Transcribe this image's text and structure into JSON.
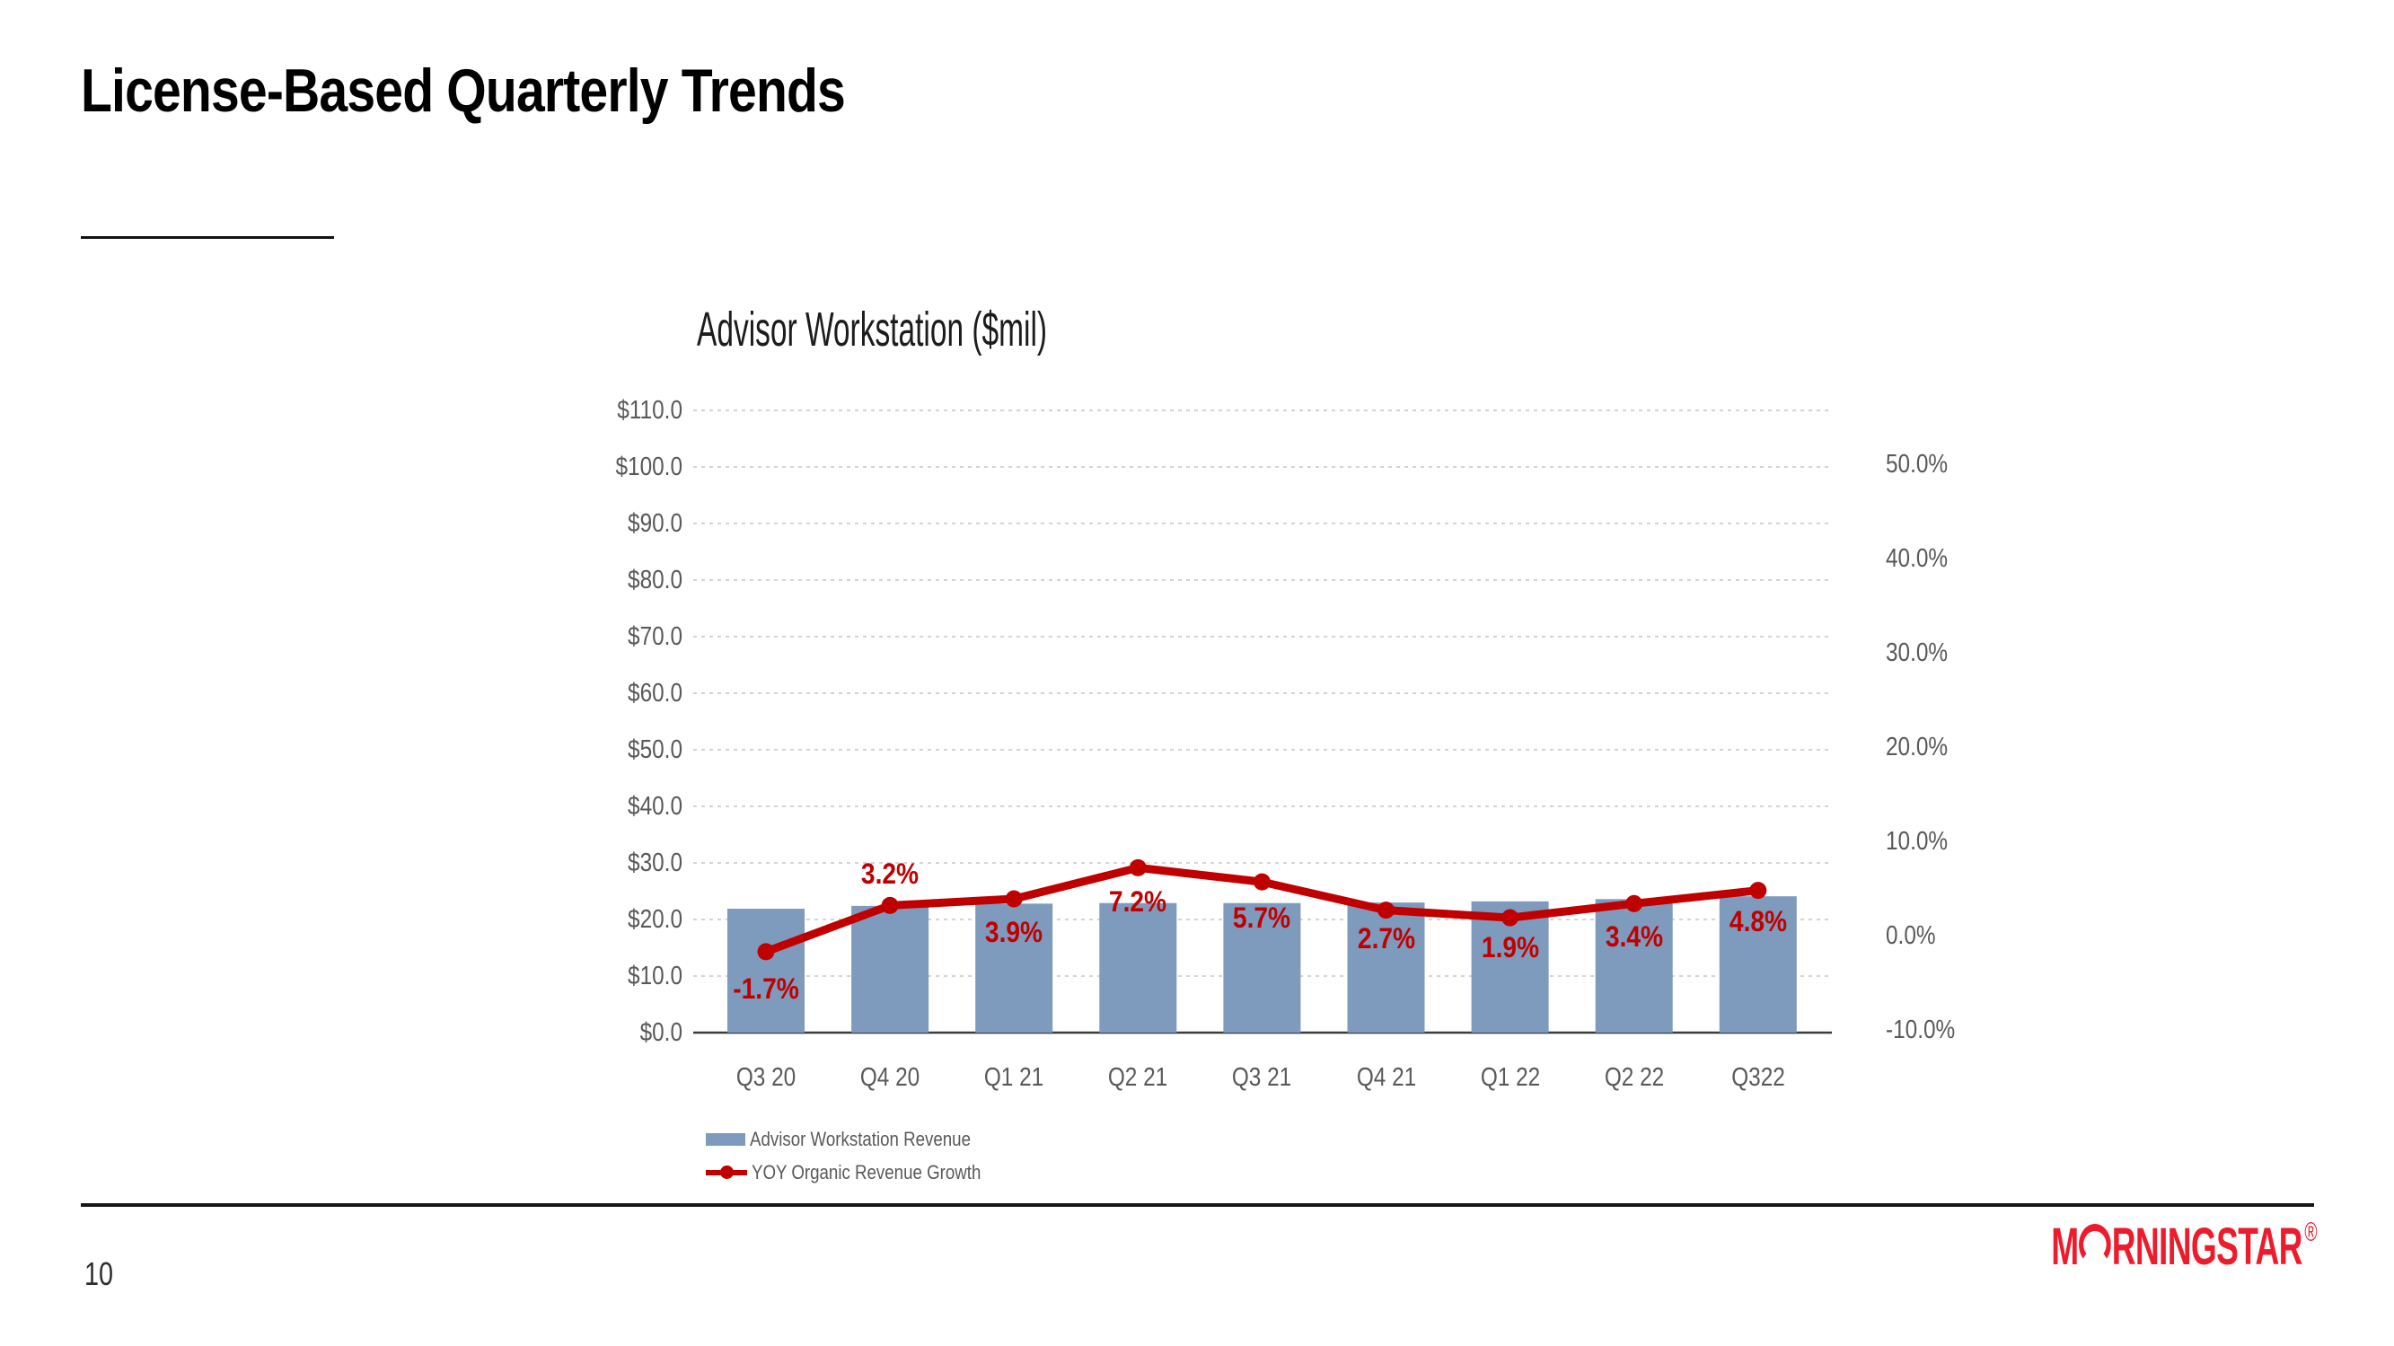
{
  "slide": {
    "title": "License-Based Quarterly Trends",
    "page_number": "10"
  },
  "footer": {
    "logo": {
      "prefix": "M",
      "suffix": "RNINGSTAR",
      "registered": "®",
      "color": "#ec1c2d"
    }
  },
  "chart_data": {
    "type": "combo-bar-line",
    "title": "Advisor Workstation ($mil)",
    "categories": [
      "Q3 20",
      "Q4 20",
      "Q1 21",
      "Q2 21",
      "Q3 21",
      "Q4 21",
      "Q1 22",
      "Q2 22",
      "Q322"
    ],
    "series": [
      {
        "name": "Advisor Workstation Revenue",
        "type": "bar",
        "axis": "left",
        "color": "#7e9abc",
        "values": [
          21.9,
          22.4,
          22.8,
          22.9,
          22.9,
          23.0,
          23.2,
          23.6,
          24.1
        ]
      },
      {
        "name": "YOY Organic Revenue Growth",
        "type": "line",
        "axis": "right",
        "color": "#c00000",
        "values": [
          -1.7,
          3.2,
          3.9,
          7.2,
          5.7,
          2.7,
          1.9,
          3.4,
          4.8
        ],
        "labels": [
          "-1.7%",
          "3.2%",
          "3.9%",
          "7.2%",
          "5.7%",
          "2.7%",
          "1.9%",
          "3.4%",
          "4.8%"
        ]
      }
    ],
    "left_axis": {
      "min": 0,
      "max": 110,
      "tick_labels": [
        "$110.0",
        "$100.0",
        "$90.0",
        "$80.0",
        "$70.0",
        "$60.0",
        "$50.0",
        "$40.0",
        "$30.0",
        "$20.0",
        "$10.0",
        "$0.0"
      ],
      "tick_values": [
        110,
        100,
        90,
        80,
        70,
        60,
        50,
        40,
        30,
        20,
        10,
        0
      ]
    },
    "right_axis": {
      "min": -10,
      "max": 50,
      "tick_labels": [
        "50.0%",
        "40.0%",
        "30.0%",
        "20.0%",
        "10.0%",
        "0.0%",
        "-10.0%"
      ],
      "tick_values": [
        50,
        40,
        30,
        20,
        10,
        0,
        -10
      ]
    },
    "grid": "dashed horizontal",
    "legend_position": "bottom-left"
  }
}
